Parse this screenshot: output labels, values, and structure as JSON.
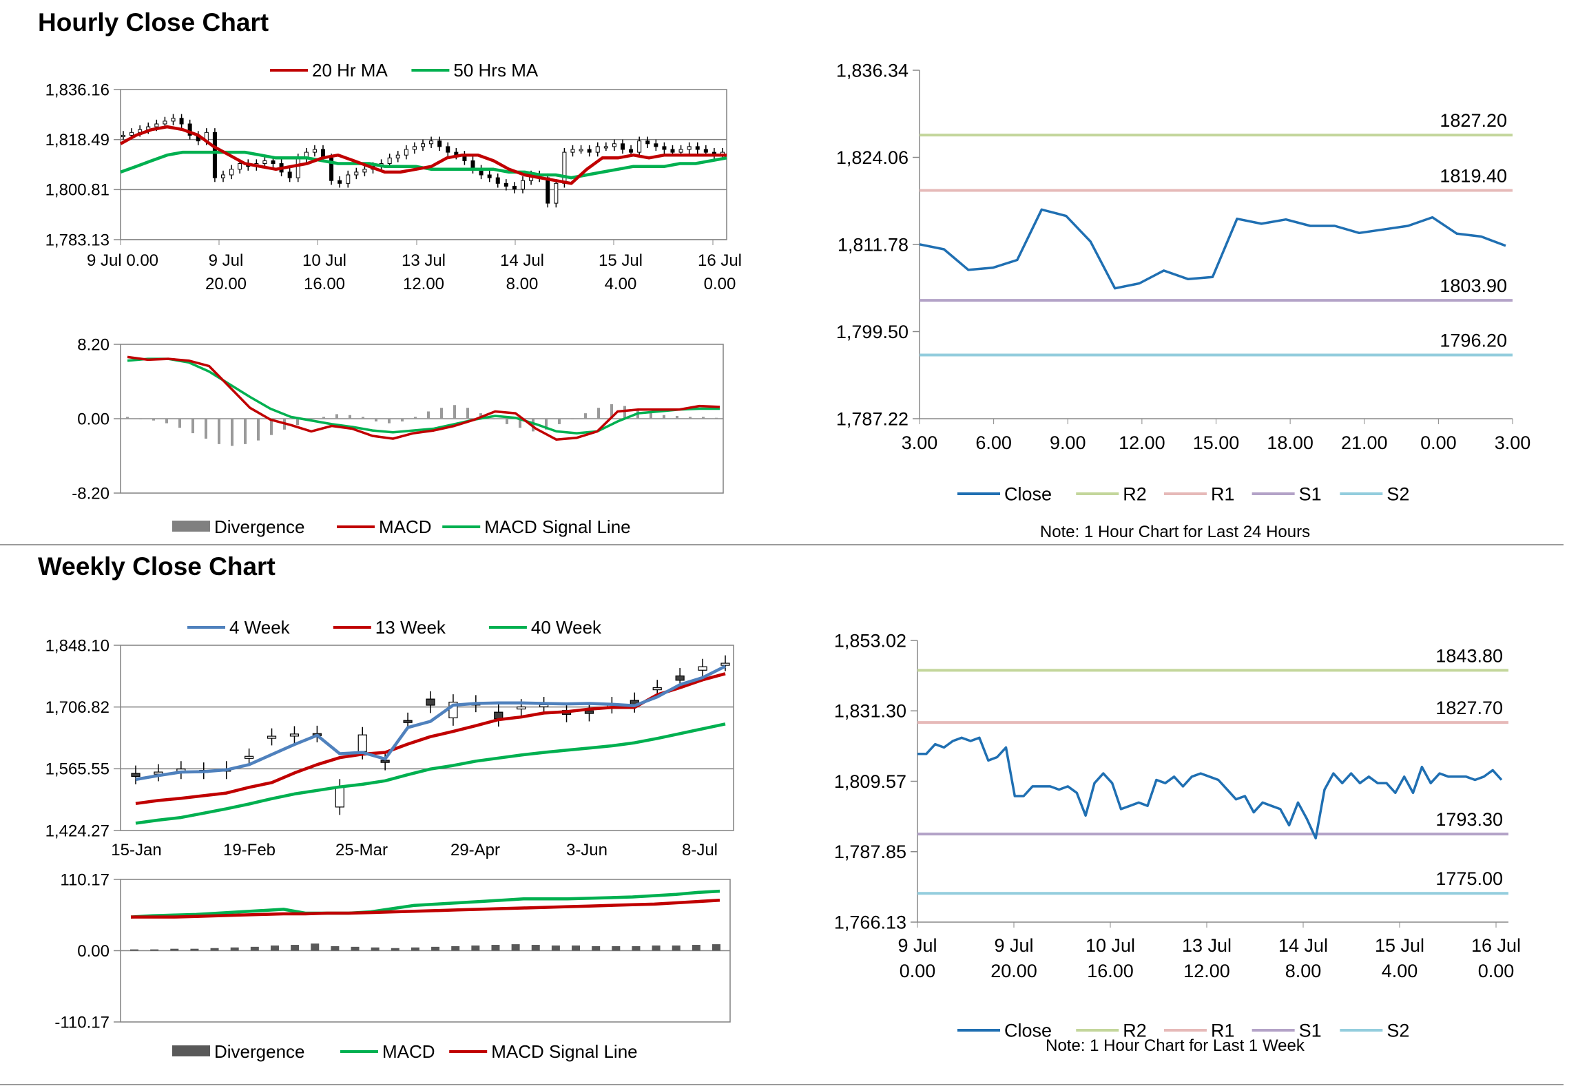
{
  "sections": {
    "hourly_title": "Hourly Close Chart",
    "weekly_title": "Weekly Close Chart"
  },
  "chart_data": [
    {
      "id": "hourly_price",
      "type": "candlestick+line",
      "legend": [
        {
          "label": "20 Hr MA",
          "color": "#c00000"
        },
        {
          "label": "50 Hrs MA",
          "color": "#00b050"
        }
      ],
      "y_ticks": [
        "1,836.16",
        "1,818.49",
        "1,800.81",
        "1,783.13"
      ],
      "ylim": [
        1783.13,
        1836.16
      ],
      "x_ticks": [
        [
          "9 Jul 0.00",
          ""
        ],
        [
          "9 Jul",
          "20.00"
        ],
        [
          "10 Jul",
          "16.00"
        ],
        [
          "13 Jul",
          "12.00"
        ],
        [
          "14 Jul",
          "8.00"
        ],
        [
          "15 Jul",
          "4.00"
        ],
        [
          "16 Jul",
          "0.00"
        ]
      ],
      "candles_close": [
        1820,
        1821,
        1822,
        1823,
        1824,
        1825,
        1826,
        1824,
        1820,
        1818,
        1821,
        1805,
        1806,
        1808,
        1810,
        1809,
        1810,
        1811,
        1810,
        1807,
        1805,
        1812,
        1814,
        1815,
        1812,
        1804,
        1803,
        1806,
        1807,
        1808,
        1809,
        1810,
        1812,
        1813,
        1815,
        1816,
        1817,
        1818,
        1816,
        1814,
        1813,
        1811,
        1808,
        1806,
        1805,
        1803,
        1802,
        1801,
        1804,
        1806,
        1805,
        1796,
        1803,
        1814,
        1815,
        1815,
        1814,
        1816,
        1816,
        1817,
        1815,
        1814,
        1818,
        1817,
        1816,
        1815,
        1814,
        1815,
        1816,
        1815,
        1814,
        1813,
        1814
      ],
      "series": [
        {
          "name": "20 Hr MA",
          "values": [
            1817,
            1820,
            1822,
            1823,
            1822,
            1820,
            1816,
            1813,
            1810,
            1809,
            1808,
            1809,
            1810,
            1812,
            1813,
            1811,
            1809,
            1807,
            1807,
            1808,
            1809,
            1812,
            1813,
            1813,
            1811,
            1808,
            1806,
            1805,
            1804,
            1803,
            1808,
            1812,
            1812,
            1813,
            1812,
            1813,
            1813,
            1813,
            1813,
            1813
          ]
        },
        {
          "name": "50 Hrs MA",
          "values": [
            1807,
            1809,
            1811,
            1813,
            1814,
            1814,
            1814,
            1814,
            1814,
            1813,
            1812,
            1812,
            1812,
            1811,
            1810,
            1810,
            1810,
            1809,
            1809,
            1809,
            1808,
            1808,
            1808,
            1808,
            1808,
            1807,
            1807,
            1806,
            1806,
            1805,
            1806,
            1807,
            1808,
            1809,
            1809,
            1809,
            1810,
            1810,
            1811,
            1812
          ]
        }
      ]
    },
    {
      "id": "hourly_macd",
      "type": "bar+line",
      "y_ticks": [
        "8.20",
        "0.00",
        "-8.20"
      ],
      "ylim": [
        -8.2,
        8.2
      ],
      "legend": [
        {
          "label": "Divergence",
          "color": "#808080"
        },
        {
          "label": "MACD",
          "color": "#c00000"
        },
        {
          "label": "MACD Signal Line",
          "color": "#00b050"
        }
      ],
      "divergence": [
        0.2,
        0,
        -0.2,
        -0.5,
        -1,
        -1.6,
        -2.2,
        -2.8,
        -3.0,
        -2.8,
        -2.4,
        -1.8,
        -1.2,
        -0.7,
        -0.2,
        0.2,
        0.5,
        0.4,
        0.2,
        -0.3,
        -0.5,
        -0.3,
        0.2,
        0.8,
        1.2,
        1.5,
        1.2,
        0.6,
        0,
        -0.6,
        -1,
        -1.4,
        -1.2,
        -0.6,
        0,
        0.6,
        1.2,
        1.6,
        1.4,
        1.0,
        0.6,
        0.4,
        0.3,
        0.2,
        0.2,
        0.1
      ],
      "series": [
        {
          "name": "MACD",
          "values": [
            6.8,
            6.5,
            6.6,
            6.4,
            5.8,
            3.5,
            1.2,
            -0.1,
            -0.7,
            -1.4,
            -0.8,
            -1.1,
            -1.9,
            -2.2,
            -1.6,
            -1.3,
            -0.8,
            -0.1,
            0.8,
            0.6,
            -1.1,
            -2.3,
            -2.1,
            -1.4,
            0.8,
            1.0,
            1.0,
            1.0,
            1.4,
            1.3
          ]
        },
        {
          "name": "MACD Signal Line",
          "values": [
            6.4,
            6.6,
            6.6,
            6.2,
            5.2,
            3.8,
            2.4,
            1.1,
            0.2,
            -0.2,
            -0.6,
            -0.9,
            -1.3,
            -1.5,
            -1.3,
            -1.1,
            -0.6,
            -0.1,
            0.3,
            0.1,
            -0.6,
            -1.4,
            -1.6,
            -1.4,
            -0.3,
            0.6,
            0.8,
            1.0,
            1.1,
            1.1
          ]
        }
      ]
    },
    {
      "id": "hourly_24h",
      "type": "line",
      "y_ticks": [
        "1,836.34",
        "1,824.06",
        "1,811.78",
        "1,799.50",
        "1,787.22"
      ],
      "ylim": [
        1787.22,
        1836.34
      ],
      "x_ticks": [
        "3.00",
        "6.00",
        "9.00",
        "12.00",
        "15.00",
        "18.00",
        "21.00",
        "0.00",
        "3.00"
      ],
      "series": [
        {
          "name": "Close",
          "color": "#1f6fb2",
          "values": [
            1811.8,
            1811.1,
            1808.2,
            1808.5,
            1809.6,
            1816.7,
            1815.8,
            1812.2,
            1805.6,
            1806.3,
            1808.1,
            1806.9,
            1807.2,
            1815.4,
            1814.7,
            1815.3,
            1814.4,
            1814.4,
            1813.4,
            1813.9,
            1814.4,
            1815.6,
            1813.3,
            1812.9,
            1811.6
          ]
        }
      ],
      "levels": [
        {
          "name": "R2",
          "value": "1827.20",
          "color": "#c3d69b"
        },
        {
          "name": "R1",
          "value": "1819.40",
          "color": "#e6b9b8"
        },
        {
          "name": "S1",
          "value": "1803.90",
          "color": "#b3a2c7"
        },
        {
          "name": "S2",
          "value": "1796.20",
          "color": "#93cddd"
        }
      ],
      "legend": [
        {
          "label": "Close",
          "color": "#1f6fb2"
        },
        {
          "label": "R2",
          "color": "#c3d69b"
        },
        {
          "label": "R1",
          "color": "#e6b9b8"
        },
        {
          "label": "S1",
          "color": "#b3a2c7"
        },
        {
          "label": "S2",
          "color": "#93cddd"
        }
      ],
      "note": "Note: 1 Hour Chart for Last 24 Hours"
    },
    {
      "id": "weekly_price",
      "type": "candlestick+line",
      "legend": [
        {
          "label": "4 Week",
          "color": "#4f81bd"
        },
        {
          "label": "13 Week",
          "color": "#c00000"
        },
        {
          "label": "40 Week",
          "color": "#00b050"
        }
      ],
      "y_ticks": [
        "1,848.10",
        "1,706.82",
        "1,565.55",
        "1,424.27"
      ],
      "ylim": [
        1424.27,
        1848.1
      ],
      "x_ticks": [
        "15-Jan",
        "19-Feb",
        "25-Mar",
        "29-Apr",
        "3-Jun",
        "8-Jul"
      ],
      "candles": [
        [
          1555,
          1548
        ],
        [
          1555,
          1558
        ],
        [
          1560,
          1565
        ],
        [
          1562,
          1560
        ],
        [
          1565,
          1560
        ],
        [
          1590,
          1594
        ],
        [
          1637,
          1640
        ],
        [
          1642,
          1645
        ],
        [
          1646,
          1644
        ],
        [
          1478,
          1524
        ],
        [
          1605,
          1643
        ],
        [
          1585,
          1580
        ],
        [
          1676,
          1673
        ],
        [
          1725,
          1711
        ],
        [
          1682,
          1718
        ],
        [
          1716,
          1713
        ],
        [
          1695,
          1680
        ],
        [
          1705,
          1707
        ],
        [
          1712,
          1712
        ],
        [
          1699,
          1690
        ],
        [
          1698,
          1692
        ],
        [
          1710,
          1712
        ],
        [
          1722,
          1712
        ],
        [
          1751,
          1751
        ],
        [
          1778,
          1768
        ],
        [
          1791,
          1799
        ],
        [
          1807,
          1807
        ]
      ],
      "series": [
        {
          "name": "4 Week",
          "values": [
            1541,
            1550,
            1558,
            1559,
            1563,
            1575,
            1598,
            1621,
            1642,
            1600,
            1603,
            1588,
            1660,
            1674,
            1711,
            1715,
            1716,
            1716,
            1715,
            1714,
            1715,
            1713,
            1710,
            1730,
            1758,
            1774,
            1800
          ]
        },
        {
          "name": "13 Week",
          "values": [
            1486,
            1493,
            1498,
            1504,
            1510,
            1523,
            1534,
            1556,
            1575,
            1591,
            1599,
            1603,
            1622,
            1639,
            1651,
            1664,
            1678,
            1684,
            1693,
            1696,
            1702,
            1706,
            1706,
            1735,
            1751,
            1769,
            1783
          ]
        },
        {
          "name": "40 Week",
          "values": [
            1441,
            1448,
            1454,
            1464,
            1474,
            1485,
            1497,
            1508,
            1516,
            1524,
            1530,
            1538,
            1552,
            1565,
            1573,
            1583,
            1590,
            1597,
            1603,
            1608,
            1613,
            1618,
            1625,
            1635,
            1646,
            1657,
            1668
          ]
        }
      ]
    },
    {
      "id": "weekly_macd",
      "type": "bar+line",
      "y_ticks": [
        "110.17",
        "0.00",
        "-110.17"
      ],
      "ylim": [
        -110.17,
        110.17
      ],
      "legend": [
        {
          "label": "Divergence",
          "color": "#595959"
        },
        {
          "label": "MACD",
          "color": "#00b050"
        },
        {
          "label": "MACD Signal Line",
          "color": "#c00000"
        }
      ],
      "divergence": [
        2,
        2,
        3,
        3,
        4,
        5,
        6,
        8,
        9,
        11,
        7,
        6,
        5,
        4,
        5,
        6,
        7,
        8,
        9,
        10,
        9,
        8,
        8,
        7,
        7,
        7,
        8,
        8,
        9,
        10
      ],
      "series": [
        {
          "name": "MACD",
          "values": [
            52,
            54,
            55,
            56,
            58,
            60,
            62,
            64,
            58,
            58,
            58,
            60,
            65,
            70,
            72,
            74,
            76,
            78,
            80,
            80,
            80,
            81,
            82,
            83,
            85,
            87,
            90,
            92
          ]
        },
        {
          "name": "MACD Signal Line",
          "values": [
            52,
            52,
            52,
            53,
            54,
            55,
            56,
            57,
            57,
            58,
            58,
            59,
            60,
            61,
            62,
            63,
            64,
            65,
            66,
            67,
            68,
            69,
            70,
            71,
            72,
            74,
            76,
            78
          ]
        }
      ]
    },
    {
      "id": "weekly_1w",
      "type": "line",
      "y_ticks": [
        "1,853.02",
        "1,831.30",
        "1,809.57",
        "1,787.85",
        "1,766.13"
      ],
      "ylim": [
        1766.13,
        1853.02
      ],
      "x_ticks": [
        [
          "9 Jul",
          "0.00"
        ],
        [
          "9 Jul",
          "20.00"
        ],
        [
          "10 Jul",
          "16.00"
        ],
        [
          "13 Jul",
          "12.00"
        ],
        [
          "14 Jul",
          "8.00"
        ],
        [
          "15 Jul",
          "4.00"
        ],
        [
          "16 Jul",
          "0.00"
        ]
      ],
      "series": [
        {
          "name": "Close",
          "color": "#1f6fb2",
          "values": [
            1818,
            1818,
            1821,
            1820,
            1822,
            1823,
            1822,
            1823,
            1816,
            1817,
            1820,
            1805,
            1805,
            1808,
            1808,
            1808,
            1807,
            1808,
            1806,
            1799,
            1809,
            1812,
            1809,
            1801,
            1802,
            1803,
            1802,
            1810,
            1809,
            1811,
            1808,
            1811,
            1812,
            1811,
            1810,
            1807,
            1804,
            1805,
            1800,
            1803,
            1802,
            1801,
            1796,
            1803,
            1798,
            1792,
            1807,
            1812,
            1809,
            1812,
            1809,
            1811,
            1809,
            1809,
            1806,
            1811,
            1806,
            1814,
            1809,
            1812,
            1811,
            1811,
            1811,
            1810,
            1811,
            1813,
            1810
          ]
        }
      ],
      "levels": [
        {
          "name": "R2",
          "value": "1843.80",
          "color": "#c3d69b"
        },
        {
          "name": "R1",
          "value": "1827.70",
          "color": "#e6b9b8"
        },
        {
          "name": "S1",
          "value": "1793.30",
          "color": "#b3a2c7"
        },
        {
          "name": "S2",
          "value": "1775.00",
          "color": "#93cddd"
        }
      ],
      "legend": [
        {
          "label": "Close",
          "color": "#1f6fb2"
        },
        {
          "label": "R2",
          "color": "#c3d69b"
        },
        {
          "label": "R1",
          "color": "#e6b9b8"
        },
        {
          "label": "S1",
          "color": "#b3a2c7"
        },
        {
          "label": "S2",
          "color": "#93cddd"
        }
      ],
      "note": "Note: 1 Hour Chart for Last 1 Week"
    }
  ]
}
